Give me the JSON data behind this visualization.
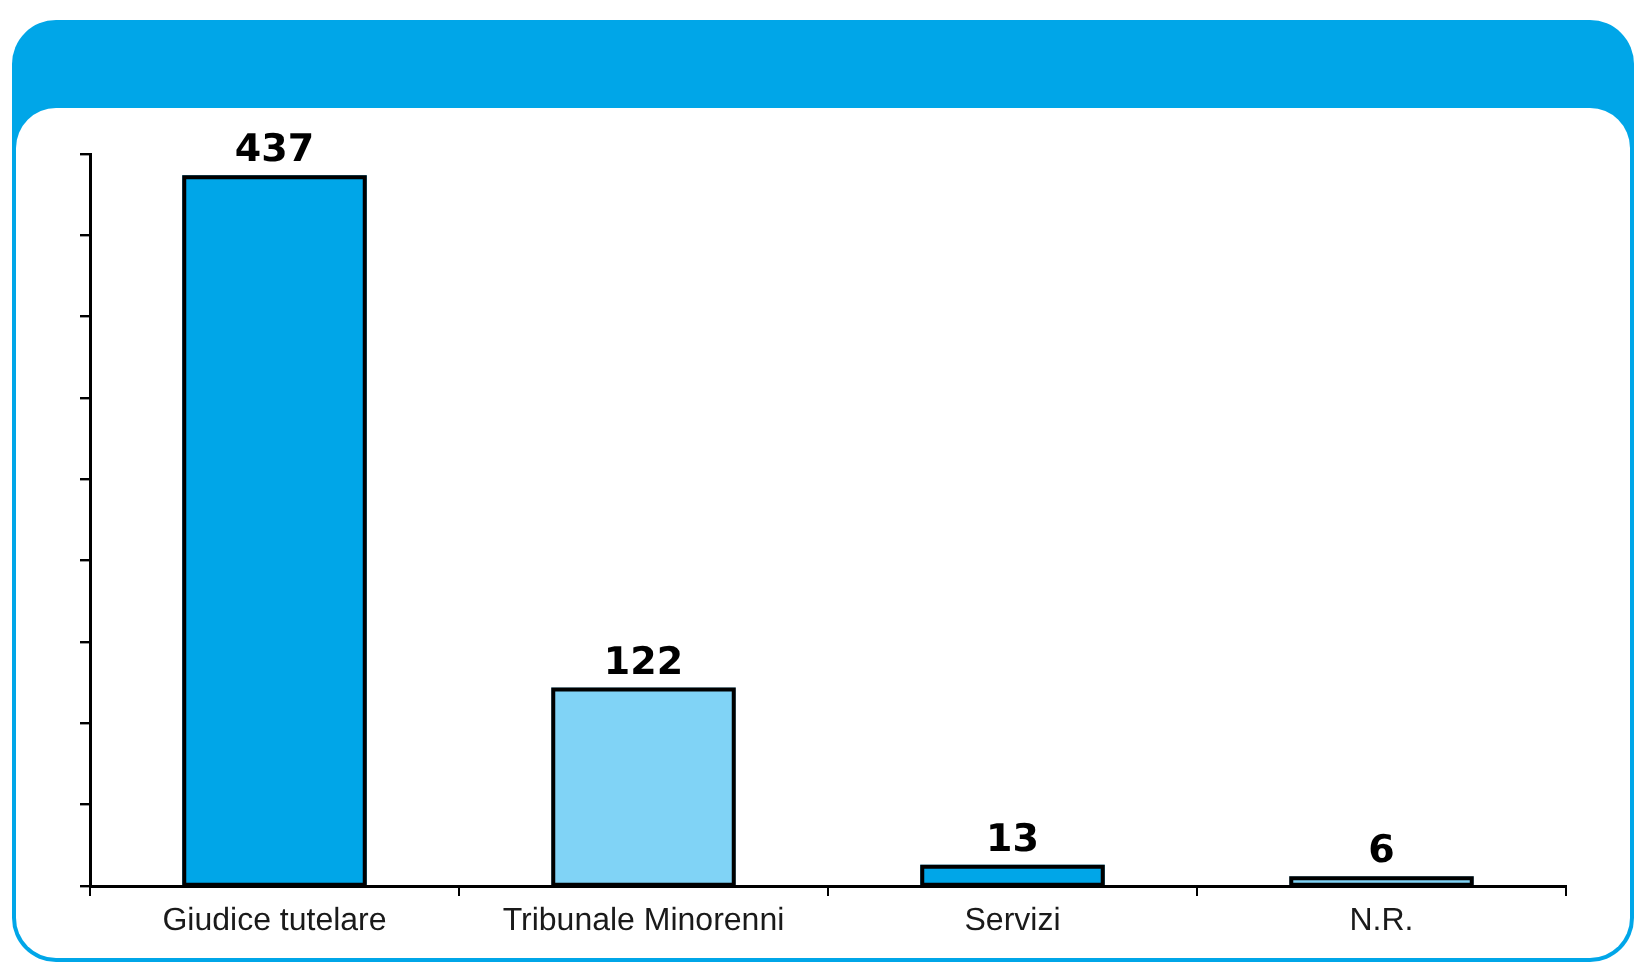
{
  "chart_data": {
    "type": "bar",
    "categories": [
      "Giudice tutelare",
      "Tribunale Minorenni",
      "Servizi",
      "N.R."
    ],
    "values": [
      437,
      122,
      13,
      6
    ],
    "colors": [
      "#00a6e8",
      "#80d3f6",
      "#00a6e8",
      "#80d3f6"
    ],
    "tick_labels": "x",
    "data_labels": true
  }
}
